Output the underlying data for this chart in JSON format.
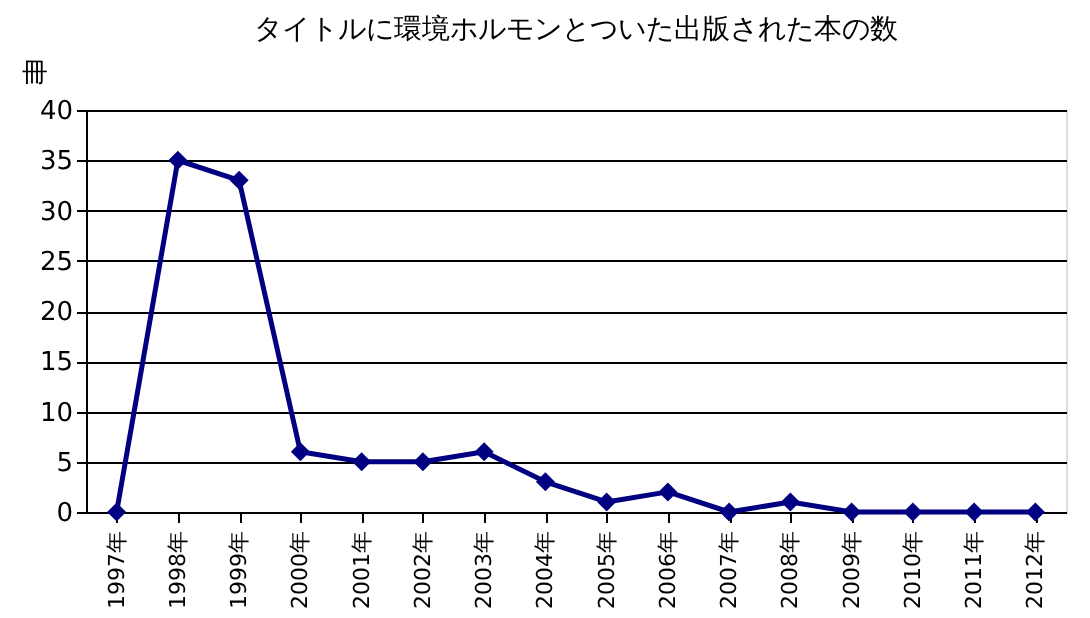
{
  "chart_data": {
    "type": "line",
    "title": "タイトルに環境ホルモンとついた出版された本の数",
    "ylabel": "冊",
    "categories": [
      "1997年",
      "1998年",
      "1999年",
      "2000年",
      "2001年",
      "2002年",
      "2003年",
      "2004年",
      "2005年",
      "2006年",
      "2007年",
      "2008年",
      "2009年",
      "2010年",
      "2011年",
      "2012年"
    ],
    "series": [
      {
        "color": "#000080",
        "values": [
          0,
          35,
          33,
          6,
          5,
          5,
          6,
          3,
          1,
          2,
          0,
          1,
          0,
          0,
          0,
          0
        ]
      }
    ],
    "ylim": [
      0,
      40
    ],
    "yticks": [
      0,
      5,
      10,
      15,
      20,
      25,
      30,
      35,
      40
    ],
    "grid": "y",
    "marker": "diamond",
    "line_style": "solid",
    "legend": false
  }
}
